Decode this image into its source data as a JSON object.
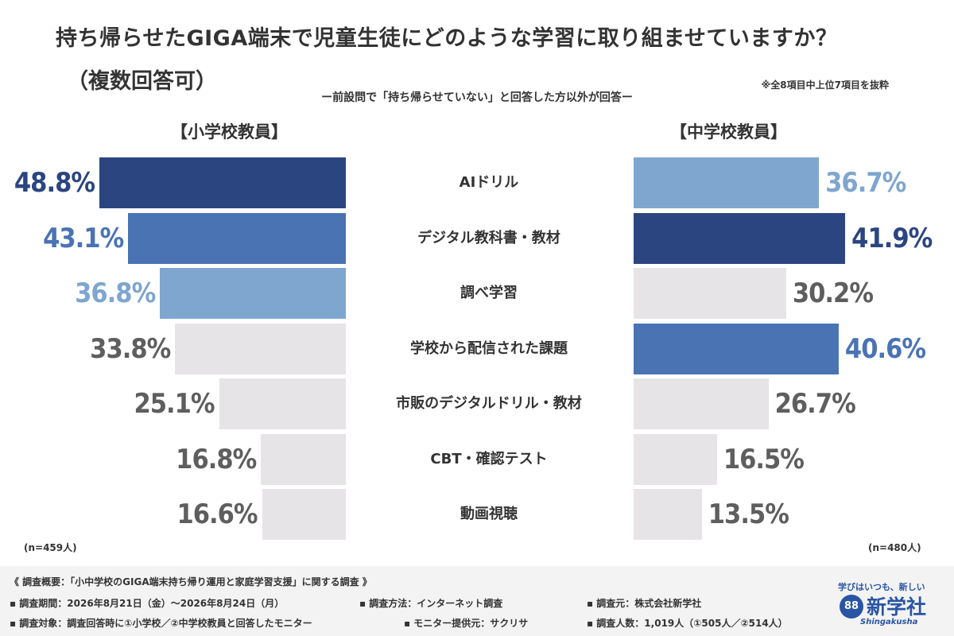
{
  "title_line1": "持ち帰らせたGIGA端末で児童生徒にどのような学習に取り組ませていますか？",
  "title_line2": "（複数回答可）",
  "subtitle": "ー前設問で「持ち帰らせていない」と回答した方以外が回答ー",
  "note": "※全8項目中上位7項目を抜粋",
  "colors": {
    "top1": "#2b4580",
    "top2": "#4a73b4",
    "top3": "#7ea6cf",
    "other_bar": "#e7e4e7",
    "other_text": "#5e5e5e"
  },
  "chart_data": {
    "type": "bar",
    "orientation": "horizontal-butterfly",
    "categories": [
      "AIドリル",
      "デジタル教科書・教材",
      "調べ学習",
      "学校から配信された課題",
      "市販のデジタルドリル・教材",
      "CBT・確認テスト",
      "動画視聴"
    ],
    "unit": "%",
    "xlim": [
      0,
      50
    ],
    "series": [
      {
        "name": "【小学校教員】",
        "n_label": "(n=459人)",
        "values": [
          48.8,
          43.1,
          36.8,
          33.8,
          25.1,
          16.8,
          16.6
        ],
        "labels": [
          "48.8%",
          "43.1%",
          "36.8%",
          "33.8%",
          "25.1%",
          "16.8%",
          "16.6%"
        ],
        "rank": [
          1,
          2,
          3,
          0,
          0,
          0,
          0
        ]
      },
      {
        "name": "【中学校教員】",
        "n_label": "(n=480人)",
        "values": [
          36.7,
          41.9,
          30.2,
          40.6,
          26.7,
          16.5,
          13.5
        ],
        "labels": [
          "36.7%",
          "41.9%",
          "30.2%",
          "40.6%",
          "26.7%",
          "16.5%",
          "13.5%"
        ],
        "rank": [
          3,
          1,
          0,
          2,
          0,
          0,
          0
        ]
      }
    ]
  },
  "footer": {
    "overview": "《 調査概要：「小中学校のGIGA端末持ち帰り運用と家庭学習支援」に関する調査 》",
    "period": "▪ 調査期間：2026年8月21日（金）～2026年8月24日（月）",
    "method": "▪ 調査方法：インターネット調査",
    "organizer": "▪ 調査元：株式会社新学社",
    "target": "▪ 調査対象：調査回答時に①小学校／②中学校教員と回答したモニター",
    "provider": "▪ モニター提供元：サクリサ",
    "count": "▪ 調査人数：1,019人（①505人／②514人）"
  },
  "logo": {
    "tagline": "学びはいつも、新しい",
    "mark": "88",
    "name": "新学社",
    "roman": "Shingakusha"
  }
}
